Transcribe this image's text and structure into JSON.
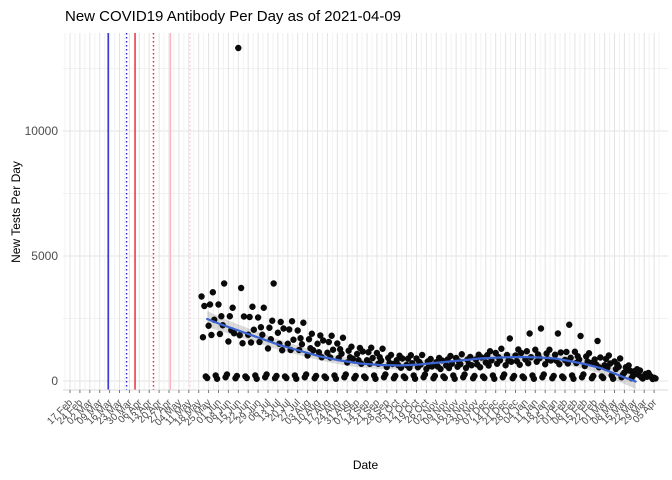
{
  "header": {
    "title": "New COVID19 Antibody Per Day as of 2021-04-09"
  },
  "chart_data": {
    "type": "scatter",
    "title": "New COVID19 Antibody Per Day as of 2021-04-09",
    "xlabel": "Date",
    "ylabel": "New Tests Per Day",
    "x_start_date": "2020-02-17",
    "x_tick_interval_days": 7,
    "x_tick_labels": [
      "17 Feb",
      "24 Feb",
      "02 Mar",
      "09 Mar",
      "16 Mar",
      "23 Mar",
      "30 Mar",
      "06 Apr",
      "13 Apr",
      "20 Apr",
      "27 Apr",
      "04 May",
      "11 May",
      "18 May",
      "25 May",
      "01 Jun",
      "08 Jun",
      "15 Jun",
      "22 Jun",
      "29 Jun",
      "06 Jul",
      "13 Jul",
      "20 Jul",
      "27 Jul",
      "03 Aug",
      "10 Aug",
      "17 Aug",
      "24 Aug",
      "31 Aug",
      "07 Sep",
      "14 Sep",
      "21 Sep",
      "28 Sep",
      "05 Oct",
      "12 Oct",
      "19 Oct",
      "26 Oct",
      "02 Nov",
      "09 Nov",
      "16 Nov",
      "23 Nov",
      "30 Nov",
      "07 Dec",
      "14 Dec",
      "21 Dec",
      "28 Dec",
      "04 Jan",
      "11 Jan",
      "18 Jan",
      "25 Jan",
      "01 Feb",
      "08 Feb",
      "15 Feb",
      "22 Feb",
      "01 Mar",
      "08 Mar",
      "15 Mar",
      "22 Mar",
      "29 Mar",
      "05 Apr"
    ],
    "y_ticks": [
      0,
      5000,
      10000
    ],
    "y_minor_ticks": [
      2500,
      7500,
      12500
    ],
    "ylim": [
      -350,
      13900
    ],
    "grid": "major+minor",
    "legend": "none",
    "colors": {
      "point": "#0a0a0a",
      "smooth_line": "#3b64d2",
      "ribbon": "#999999",
      "grid_major": "#e3e3e3",
      "grid_minor": "#f2f2f2",
      "axis_text": "#4d4d4d",
      "axis_line": "#d9d9d9"
    },
    "vlines": [
      {
        "day": 27,
        "color": "#2323cc",
        "style": "solid",
        "name": "event-blue-solid"
      },
      {
        "day": 40,
        "color": "#2323cc",
        "style": "dotted",
        "name": "event-blue-dotted"
      },
      {
        "day": 46,
        "color": "#ee2233",
        "style": "solid",
        "name": "event-red-solid"
      },
      {
        "day": 59,
        "color": "#ee2233",
        "style": "dotted",
        "name": "event-red-dotted"
      },
      {
        "day": 71,
        "color": "#ffb3c1",
        "style": "solid",
        "name": "event-pink-solid"
      },
      {
        "day": 85,
        "color": "#ffd0da",
        "style": "dotted",
        "name": "event-pink-dotted"
      }
    ],
    "smooth": {
      "days": [
        97,
        106,
        120,
        134,
        148,
        163,
        177,
        191,
        205,
        219,
        233,
        247,
        261,
        276,
        290,
        304,
        318,
        332,
        343,
        353,
        364,
        375,
        385,
        392,
        400
      ],
      "values": [
        2480,
        2280,
        2000,
        1720,
        1440,
        1200,
        980,
        820,
        700,
        640,
        620,
        660,
        740,
        820,
        900,
        940,
        960,
        940,
        900,
        800,
        680,
        520,
        300,
        140,
        -20
      ],
      "se": [
        320,
        280,
        240,
        220,
        200,
        180,
        160,
        160,
        160,
        160,
        160,
        160,
        160,
        160,
        160,
        160,
        160,
        160,
        168,
        180,
        200,
        220,
        240,
        260,
        300
      ]
    },
    "points": [
      [
        93,
        3380
      ],
      [
        94,
        1750
      ],
      [
        95,
        3000
      ],
      [
        96,
        180
      ],
      [
        97,
        120
      ],
      [
        98,
        2210
      ],
      [
        99,
        3060
      ],
      [
        100,
        1840
      ],
      [
        101,
        3550
      ],
      [
        102,
        2450
      ],
      [
        103,
        220
      ],
      [
        104,
        90
      ],
      [
        105,
        3060
      ],
      [
        106,
        1880
      ],
      [
        107,
        2590
      ],
      [
        108,
        2230
      ],
      [
        109,
        3900
      ],
      [
        110,
        150
      ],
      [
        111,
        260
      ],
      [
        112,
        1580
      ],
      [
        113,
        2590
      ],
      [
        114,
        2030
      ],
      [
        115,
        2930
      ],
      [
        116,
        1910
      ],
      [
        117,
        110
      ],
      [
        118,
        200
      ],
      [
        119,
        13320
      ],
      [
        120,
        1830
      ],
      [
        121,
        3720
      ],
      [
        122,
        1510
      ],
      [
        123,
        2580
      ],
      [
        124,
        180
      ],
      [
        125,
        120
      ],
      [
        126,
        1850
      ],
      [
        127,
        2560
      ],
      [
        128,
        1540
      ],
      [
        129,
        2970
      ],
      [
        130,
        2050
      ],
      [
        131,
        220
      ],
      [
        132,
        90
      ],
      [
        133,
        2540
      ],
      [
        134,
        1560
      ],
      [
        135,
        2150
      ],
      [
        136,
        1850
      ],
      [
        137,
        2930
      ],
      [
        138,
        150
      ],
      [
        139,
        260
      ],
      [
        140,
        1300
      ],
      [
        141,
        2130
      ],
      [
        142,
        1670
      ],
      [
        143,
        2410
      ],
      [
        144,
        3900
      ],
      [
        145,
        110
      ],
      [
        146,
        200
      ],
      [
        147,
        1930
      ],
      [
        148,
        1490
      ],
      [
        149,
        2360
      ],
      [
        150,
        1230
      ],
      [
        151,
        2100
      ],
      [
        152,
        180
      ],
      [
        153,
        120
      ],
      [
        154,
        1490
      ],
      [
        155,
        2060
      ],
      [
        156,
        1240
      ],
      [
        157,
        2390
      ],
      [
        158,
        1650
      ],
      [
        159,
        220
      ],
      [
        160,
        90
      ],
      [
        161,
        2020
      ],
      [
        162,
        1240
      ],
      [
        163,
        1710
      ],
      [
        164,
        1470
      ],
      [
        165,
        2330
      ],
      [
        166,
        150
      ],
      [
        167,
        260
      ],
      [
        168,
        1020
      ],
      [
        169,
        1670
      ],
      [
        170,
        1310
      ],
      [
        171,
        1890
      ],
      [
        172,
        1230
      ],
      [
        173,
        110
      ],
      [
        174,
        200
      ],
      [
        175,
        1490
      ],
      [
        176,
        1150
      ],
      [
        177,
        1820
      ],
      [
        178,
        950
      ],
      [
        179,
        1620
      ],
      [
        180,
        180
      ],
      [
        181,
        120
      ],
      [
        182,
        1130
      ],
      [
        183,
        1560
      ],
      [
        184,
        940
      ],
      [
        185,
        1810
      ],
      [
        186,
        1250
      ],
      [
        187,
        220
      ],
      [
        188,
        90
      ],
      [
        189,
        1500
      ],
      [
        190,
        920
      ],
      [
        191,
        1270
      ],
      [
        192,
        1090
      ],
      [
        193,
        1730
      ],
      [
        194,
        150
      ],
      [
        195,
        260
      ],
      [
        196,
        740
      ],
      [
        197,
        1210
      ],
      [
        198,
        950
      ],
      [
        199,
        1370
      ],
      [
        200,
        890
      ],
      [
        201,
        110
      ],
      [
        202,
        200
      ],
      [
        203,
        1080
      ],
      [
        204,
        830
      ],
      [
        205,
        1320
      ],
      [
        206,
        690
      ],
      [
        207,
        1180
      ],
      [
        208,
        180
      ],
      [
        209,
        120
      ],
      [
        210,
        830
      ],
      [
        211,
        1150
      ],
      [
        212,
        690
      ],
      [
        213,
        1330
      ],
      [
        214,
        920
      ],
      [
        215,
        220
      ],
      [
        216,
        90
      ],
      [
        217,
        1120
      ],
      [
        218,
        690
      ],
      [
        219,
        950
      ],
      [
        220,
        820
      ],
      [
        221,
        1290
      ],
      [
        222,
        150
      ],
      [
        223,
        260
      ],
      [
        224,
        560
      ],
      [
        225,
        920
      ],
      [
        226,
        720
      ],
      [
        227,
        1040
      ],
      [
        228,
        680
      ],
      [
        229,
        110
      ],
      [
        230,
        200
      ],
      [
        231,
        830
      ],
      [
        232,
        640
      ],
      [
        233,
        1010
      ],
      [
        234,
        530
      ],
      [
        235,
        900
      ],
      [
        236,
        180
      ],
      [
        237,
        120
      ],
      [
        238,
        640
      ],
      [
        239,
        890
      ],
      [
        240,
        530
      ],
      [
        241,
        1030
      ],
      [
        242,
        710
      ],
      [
        243,
        220
      ],
      [
        244,
        90
      ],
      [
        245,
        900
      ],
      [
        246,
        550
      ],
      [
        247,
        760
      ],
      [
        248,
        660
      ],
      [
        249,
        1040
      ],
      [
        250,
        150
      ],
      [
        251,
        260
      ],
      [
        252,
        480
      ],
      [
        253,
        780
      ],
      [
        254,
        610
      ],
      [
        255,
        880
      ],
      [
        256,
        580
      ],
      [
        257,
        110
      ],
      [
        258,
        200
      ],
      [
        259,
        750
      ],
      [
        260,
        580
      ],
      [
        261,
        920
      ],
      [
        262,
        480
      ],
      [
        263,
        820
      ],
      [
        264,
        180
      ],
      [
        265,
        120
      ],
      [
        266,
        620
      ],
      [
        267,
        860
      ],
      [
        268,
        520
      ],
      [
        269,
        1000
      ],
      [
        270,
        690
      ],
      [
        271,
        220
      ],
      [
        272,
        90
      ],
      [
        273,
        920
      ],
      [
        274,
        570
      ],
      [
        275,
        780
      ],
      [
        276,
        670
      ],
      [
        277,
        1070
      ],
      [
        278,
        150
      ],
      [
        279,
        260
      ],
      [
        280,
        520
      ],
      [
        281,
        850
      ],
      [
        282,
        670
      ],
      [
        283,
        960
      ],
      [
        284,
        630
      ],
      [
        285,
        110
      ],
      [
        286,
        200
      ],
      [
        287,
        860
      ],
      [
        288,
        660
      ],
      [
        289,
        1050
      ],
      [
        290,
        550
      ],
      [
        291,
        940
      ],
      [
        292,
        180
      ],
      [
        293,
        120
      ],
      [
        294,
        740
      ],
      [
        295,
        1030
      ],
      [
        296,
        620
      ],
      [
        297,
        1190
      ],
      [
        298,
        820
      ],
      [
        299,
        220
      ],
      [
        300,
        90
      ],
      [
        301,
        1120
      ],
      [
        302,
        690
      ],
      [
        303,
        950
      ],
      [
        304,
        820
      ],
      [
        305,
        1290
      ],
      [
        306,
        150
      ],
      [
        307,
        260
      ],
      [
        308,
        630
      ],
      [
        309,
        1040
      ],
      [
        310,
        810
      ],
      [
        311,
        1700
      ],
      [
        312,
        770
      ],
      [
        313,
        110
      ],
      [
        314,
        200
      ],
      [
        315,
        1020
      ],
      [
        316,
        790
      ],
      [
        317,
        1260
      ],
      [
        318,
        650
      ],
      [
        319,
        1120
      ],
      [
        320,
        180
      ],
      [
        321,
        120
      ],
      [
        322,
        860
      ],
      [
        323,
        1190
      ],
      [
        324,
        710
      ],
      [
        325,
        1900
      ],
      [
        326,
        950
      ],
      [
        327,
        220
      ],
      [
        328,
        90
      ],
      [
        329,
        1250
      ],
      [
        330,
        770
      ],
      [
        331,
        1060
      ],
      [
        332,
        910
      ],
      [
        333,
        2100
      ],
      [
        334,
        150
      ],
      [
        335,
        260
      ],
      [
        336,
        670
      ],
      [
        337,
        1100
      ],
      [
        338,
        860
      ],
      [
        339,
        1250
      ],
      [
        340,
        820
      ],
      [
        341,
        110
      ],
      [
        342,
        200
      ],
      [
        343,
        1050
      ],
      [
        344,
        810
      ],
      [
        345,
        1900
      ],
      [
        346,
        670
      ],
      [
        347,
        1140
      ],
      [
        348,
        180
      ],
      [
        349,
        120
      ],
      [
        350,
        840
      ],
      [
        351,
        1160
      ],
      [
        352,
        700
      ],
      [
        353,
        2250
      ],
      [
        354,
        930
      ],
      [
        355,
        220
      ],
      [
        356,
        90
      ],
      [
        357,
        1170
      ],
      [
        358,
        720
      ],
      [
        359,
        990
      ],
      [
        360,
        860
      ],
      [
        361,
        1800
      ],
      [
        362,
        150
      ],
      [
        363,
        260
      ],
      [
        364,
        600
      ],
      [
        365,
        980
      ],
      [
        366,
        770
      ],
      [
        367,
        1110
      ],
      [
        368,
        720
      ],
      [
        369,
        110
      ],
      [
        370,
        200
      ],
      [
        371,
        860
      ],
      [
        372,
        660
      ],
      [
        373,
        1600
      ],
      [
        374,
        550
      ],
      [
        375,
        940
      ],
      [
        376,
        180
      ],
      [
        377,
        120
      ],
      [
        378,
        630
      ],
      [
        379,
        880
      ],
      [
        380,
        530
      ],
      [
        381,
        1020
      ],
      [
        382,
        700
      ],
      [
        383,
        220
      ],
      [
        384,
        90
      ],
      [
        385,
        780
      ],
      [
        386,
        480
      ],
      [
        387,
        660
      ],
      [
        388,
        570
      ],
      [
        389,
        900
      ],
      [
        390,
        150
      ],
      [
        391,
        260
      ],
      [
        392,
        340
      ],
      [
        393,
        550
      ],
      [
        394,
        430
      ],
      [
        395,
        620
      ],
      [
        396,
        410
      ],
      [
        397,
        110
      ],
      [
        398,
        200
      ],
      [
        399,
        390
      ],
      [
        400,
        300
      ],
      [
        401,
        470
      ],
      [
        402,
        250
      ],
      [
        403,
        420
      ],
      [
        404,
        150
      ],
      [
        405,
        100
      ],
      [
        406,
        200
      ],
      [
        407,
        280
      ],
      [
        408,
        170
      ],
      [
        409,
        320
      ],
      [
        410,
        220
      ],
      [
        411,
        160
      ],
      [
        412,
        80
      ],
      [
        413,
        130
      ],
      [
        414,
        100
      ]
    ]
  }
}
